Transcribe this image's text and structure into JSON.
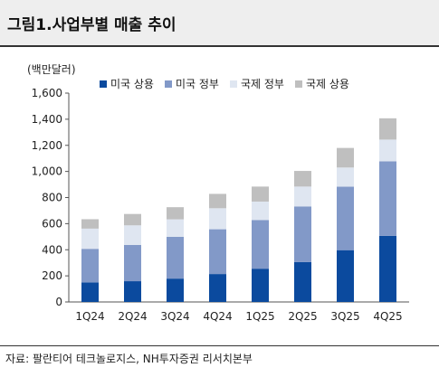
{
  "header": {
    "title": "그림1.사업부별 매출 추이"
  },
  "footer": {
    "source": "자료: 팔란티어 테크놀로지스, NH투자증권 리서치본부"
  },
  "chart_data": {
    "type": "bar",
    "stacked": true,
    "unit_label": "(백만달러)",
    "categories": [
      "1Q24",
      "2Q24",
      "3Q24",
      "4Q24",
      "1Q25",
      "2Q25",
      "3Q25",
      "4Q25"
    ],
    "series": [
      {
        "name": "미국 상용",
        "color": "#0b4a9e",
        "values": [
          150,
          159,
          179,
          214,
          255,
          306,
          397,
          507
        ]
      },
      {
        "name": "미국 정부",
        "color": "#8299c8",
        "values": [
          257,
          278,
          320,
          343,
          373,
          426,
          486,
          570
        ]
      },
      {
        "name": "국제 정부",
        "color": "#dfe6f1",
        "values": [
          155,
          150,
          134,
          161,
          141,
          152,
          147,
          167
        ]
      },
      {
        "name": "국제 상용",
        "color": "#bfbfbf",
        "values": [
          72,
          87,
          93,
          110,
          115,
          120,
          150,
          163
        ]
      }
    ],
    "ylim": [
      0,
      1600
    ],
    "yticks": [
      0,
      200,
      400,
      600,
      800,
      1000,
      1200,
      1400,
      1600
    ],
    "ytick_labels": [
      "0",
      "200",
      "400",
      "600",
      "800",
      "1,000",
      "1,200",
      "1,400",
      "1,600"
    ],
    "legend_position": "top",
    "grid": false
  }
}
